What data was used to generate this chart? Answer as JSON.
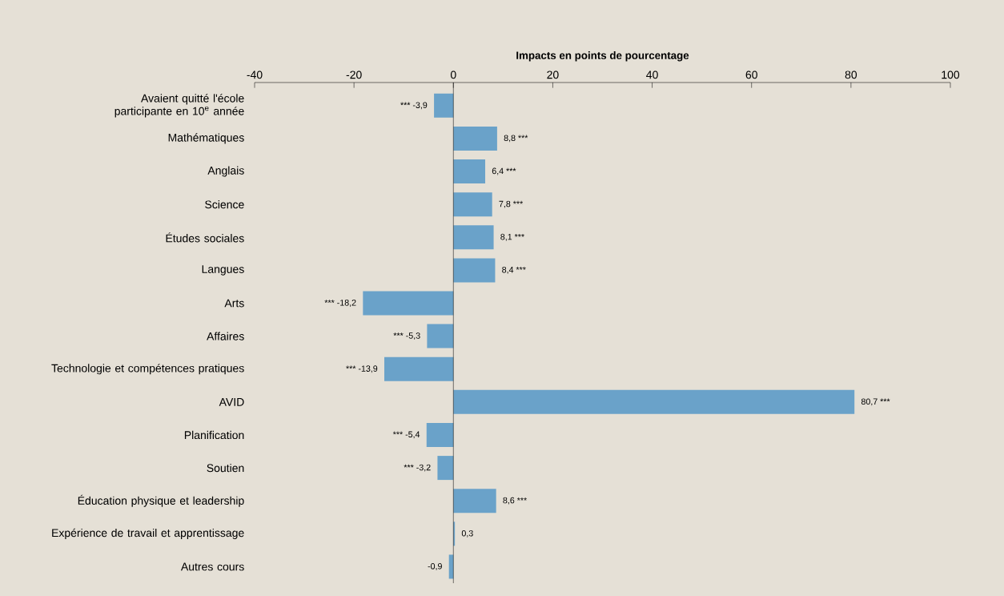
{
  "chart_data": {
    "type": "bar",
    "orientation": "horizontal",
    "xlabel": "Impacts en points de pourcentage",
    "categories": [
      "Avaient quitté l'école participante en 10$^{e}$ année",
      "Mathématiques",
      "Anglais",
      "Science",
      "Études sociales",
      "Langues",
      "Arts",
      "Affaires",
      "Technologie et compétences pratiques",
      "AVID",
      "Planification",
      "Soutien",
      "Éducation physique et leadership",
      "Expérience de travail et apprentissage",
      "Autres cours"
    ],
    "values": [
      -3.9,
      8.8,
      6.4,
      7.8,
      8.1,
      8.4,
      -18.2,
      -5.3,
      -13.9,
      80.7,
      -5.4,
      -3.2,
      8.6,
      0.3,
      -0.9
    ],
    "value_labels": [
      "*** -3,9",
      "8,8 ***",
      "6,4 ***",
      "7,8 ***",
      "8,1 ***",
      "8,4 ***",
      "*** -18,2",
      "*** -5,3",
      "*** -13,9",
      "80,7 ***",
      "*** -5,4",
      "*** -3,2",
      "8,6 ***",
      "0,3",
      "-0,9"
    ],
    "color": "#6aa2c9",
    "xlim": [
      -40,
      100
    ],
    "xticks": [
      -40,
      -20,
      0,
      20,
      40,
      60,
      80,
      100
    ]
  }
}
